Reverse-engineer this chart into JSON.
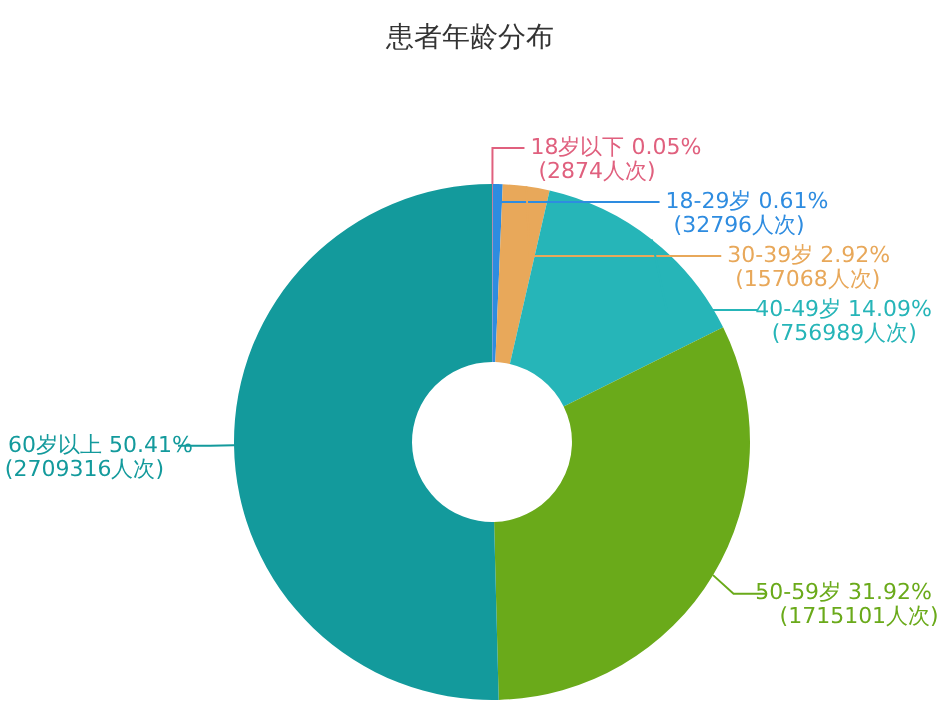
{
  "chart_data": {
    "type": "donut",
    "title": "患者年龄分布",
    "categories": [
      "18岁以下",
      "18-29岁",
      "30-39岁",
      "40-49岁",
      "50-59岁",
      "60岁以上"
    ],
    "values": [
      2874,
      32796,
      157068,
      756989,
      1715101,
      2709316
    ],
    "value_labels": [
      "0.05%\n(2874人次)",
      "0.61%\n(32796人次)",
      "2.92%\n(157068人次)",
      "14.09%\n(756989人次)",
      "31.92%\n(1715101人次)",
      "50.41%\n(2709316人次)"
    ],
    "colors": [
      "#e0607e",
      "#2e8ce0",
      "#e8a85a",
      "#26b5b8",
      "#6aaa1a",
      "#139a9c"
    ],
    "legend": false
  }
}
